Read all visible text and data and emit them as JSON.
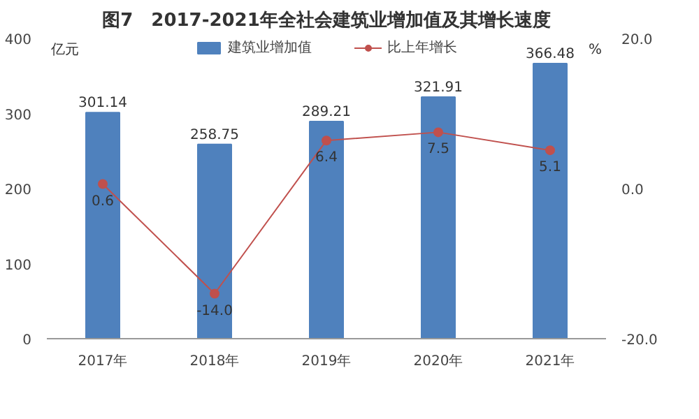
{
  "chart_data": {
    "type": "bar",
    "title": "图7　2017-2021年全社会建筑业增加值及其增长速度",
    "ylabel": "亿元",
    "y2label": "%",
    "categories": [
      "2017年",
      "2018年",
      "2019年",
      "2020年",
      "2021年"
    ],
    "series": [
      {
        "name": "建筑业增加值",
        "color": "#4f81bd",
        "values": [
          301.14,
          258.75,
          289.21,
          321.91,
          366.48
        ],
        "value_labels": [
          "301.14",
          "258.75",
          "289.21",
          "321.91",
          "366.48"
        ]
      },
      {
        "name": "比上年增长",
        "type": "line",
        "axis": "y2",
        "color": "#c0504d",
        "values": [
          0.6,
          -14.0,
          6.4,
          7.5,
          5.1
        ],
        "value_labels": [
          "0.6",
          "-14.0",
          "6.4",
          "7.5",
          "5.1"
        ]
      }
    ],
    "ylim": [
      0,
      400
    ],
    "yticks": [
      0,
      100,
      200,
      300,
      400
    ],
    "y2lim": [
      -20,
      20
    ],
    "y2ticks": [
      {
        "value": -20,
        "label": "-20.0"
      },
      {
        "value": 0,
        "label": "0.0"
      },
      {
        "value": 20,
        "label": "20.0"
      }
    ],
    "grid": false,
    "legend": "top",
    "marker": "circle",
    "line_style": "solid"
  }
}
